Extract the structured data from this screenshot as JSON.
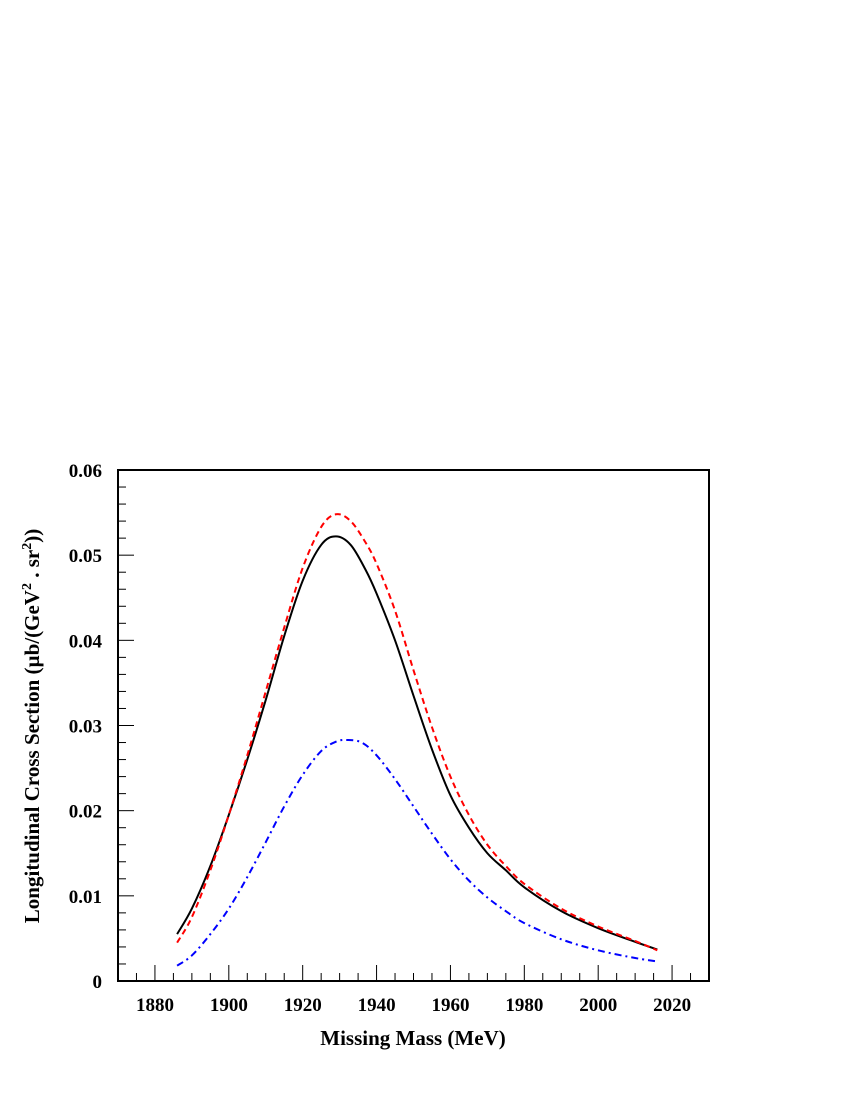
{
  "chart_data": {
    "type": "line",
    "title": "",
    "xlabel": "Missing Mass (MeV)",
    "ylabel": "Longitudinal Cross Section (µb/(GeV² . sr²))",
    "ylabel_parts": {
      "before": "Longitudinal Cross Section (µb/(GeV",
      "sup1": "2",
      "middle": " . sr",
      "sup2": "2",
      "after": "))"
    },
    "xlim": [
      1870,
      2030
    ],
    "ylim": [
      0,
      0.06
    ],
    "x_ticks": [
      1880,
      1900,
      1920,
      1940,
      1960,
      1980,
      2000,
      2020
    ],
    "x_tick_labels": [
      "1880",
      "1900",
      "1920",
      "1940",
      "1960",
      "1980",
      "2000",
      "2020"
    ],
    "y_ticks": [
      0,
      0.01,
      0.02,
      0.03,
      0.04,
      0.05,
      0.06
    ],
    "y_tick_labels": [
      "0",
      "0.01",
      "0.02",
      "0.03",
      "0.04",
      "0.05",
      "0.06"
    ],
    "grid": false,
    "legend": "none",
    "series": [
      {
        "style": "solid",
        "color": "#000000",
        "x": [
          1886,
          1890,
          1895,
          1900,
          1905,
          1910,
          1915,
          1920,
          1925,
          1929,
          1933,
          1937,
          1940,
          1945,
          1950,
          1955,
          1960,
          1965,
          1970,
          1975,
          1980,
          1990,
          2000,
          2010,
          2016
        ],
        "y": [
          0.0055,
          0.0085,
          0.0135,
          0.0195,
          0.026,
          0.033,
          0.0405,
          0.047,
          0.0512,
          0.0522,
          0.0512,
          0.0483,
          0.0455,
          0.04,
          0.0335,
          0.0272,
          0.0218,
          0.018,
          0.015,
          0.013,
          0.011,
          0.0082,
          0.0062,
          0.0046,
          0.0037
        ]
      },
      {
        "style": "dashed",
        "color": "#ff0000",
        "x": [
          1886,
          1890,
          1895,
          1900,
          1905,
          1910,
          1915,
          1920,
          1925,
          1929,
          1933,
          1937,
          1940,
          1945,
          1950,
          1955,
          1960,
          1965,
          1970,
          1975,
          1980,
          1990,
          2000,
          2010,
          2016
        ],
        "y": [
          0.0045,
          0.0075,
          0.013,
          0.0195,
          0.0265,
          0.034,
          0.0415,
          0.0485,
          0.0533,
          0.0548,
          0.054,
          0.0515,
          0.049,
          0.0435,
          0.0365,
          0.0298,
          0.024,
          0.0195,
          0.016,
          0.0135,
          0.0114,
          0.0085,
          0.0064,
          0.0047,
          0.0036
        ]
      },
      {
        "style": "dash-dot",
        "color": "#0000ff",
        "x": [
          1886,
          1890,
          1895,
          1900,
          1905,
          1910,
          1915,
          1920,
          1925,
          1929,
          1932,
          1936,
          1940,
          1945,
          1950,
          1955,
          1960,
          1965,
          1970,
          1975,
          1980,
          1990,
          2000,
          2010,
          2016
        ],
        "y": [
          0.0018,
          0.003,
          0.0055,
          0.0085,
          0.0122,
          0.0163,
          0.0205,
          0.0242,
          0.027,
          0.0281,
          0.0283,
          0.028,
          0.0265,
          0.0237,
          0.0205,
          0.0173,
          0.0143,
          0.0118,
          0.0098,
          0.0082,
          0.0068,
          0.0049,
          0.0036,
          0.0027,
          0.0023
        ]
      }
    ]
  }
}
